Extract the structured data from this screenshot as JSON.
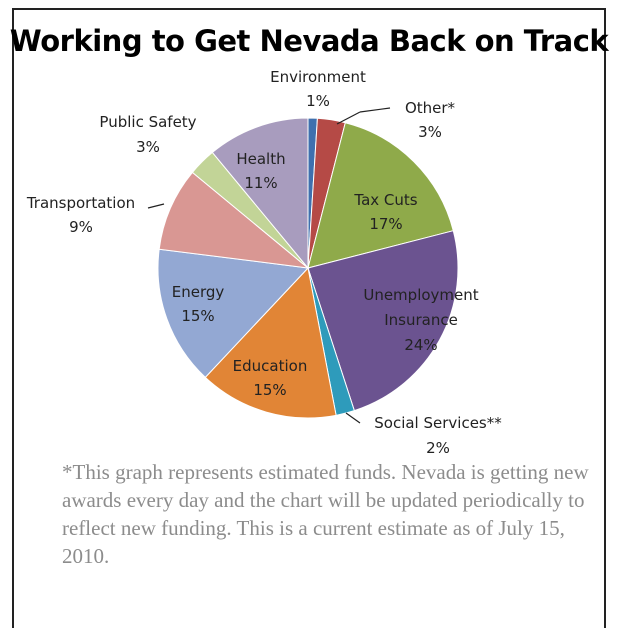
{
  "chart_data": {
    "type": "pie",
    "title": "Working to Get Nevada Back on Track",
    "slices": [
      {
        "label": "Environment",
        "value": 1,
        "value_label": "1%",
        "color": "#3f70ae"
      },
      {
        "label": "Other*",
        "value": 3,
        "value_label": "3%",
        "color": "#b54a46"
      },
      {
        "label": "Tax Cuts",
        "value": 17,
        "value_label": "17%",
        "color": "#8faa4a"
      },
      {
        "label": "Unemployment Insurance",
        "value": 24,
        "value_label": "24%",
        "color": "#6b5390"
      },
      {
        "label": "Social Services**",
        "value": 2,
        "value_label": "2%",
        "color": "#2e9bbb"
      },
      {
        "label": "Education",
        "value": 15,
        "value_label": "15%",
        "color": "#e18536"
      },
      {
        "label": "Energy",
        "value": 15,
        "value_label": "15%",
        "color": "#93a8d3"
      },
      {
        "label": "Transportation",
        "value": 9,
        "value_label": "9%",
        "color": "#d99793"
      },
      {
        "label": "Public Safety",
        "value": 3,
        "value_label": "3%",
        "color": "#c2d497"
      },
      {
        "label": "Health",
        "value": 11,
        "value_label": "11%",
        "color": "#a89cbe"
      }
    ]
  },
  "labels": {
    "environment": "Environment",
    "environment_pct": "1%",
    "other": "Other*",
    "other_pct": "3%",
    "tax_cuts": "Tax Cuts",
    "tax_cuts_pct": "17%",
    "unemployment_1": "Unemployment",
    "unemployment_2": "Insurance",
    "unemployment_pct": "24%",
    "social_services": "Social Services**",
    "social_services_pct": "2%",
    "education": "Education",
    "education_pct": "15%",
    "energy": "Energy",
    "energy_pct": "15%",
    "transportation": "Transportation",
    "transportation_pct": "9%",
    "public_safety": "Public Safety",
    "public_safety_pct": "3%",
    "health": "Health",
    "health_pct": "11%"
  },
  "footnote": "*This graph represents estimated funds.  Nevada is getting new awards every day and the chart will be updated periodically to reflect new funding.  This is a current estimate as of July 15, 2010."
}
